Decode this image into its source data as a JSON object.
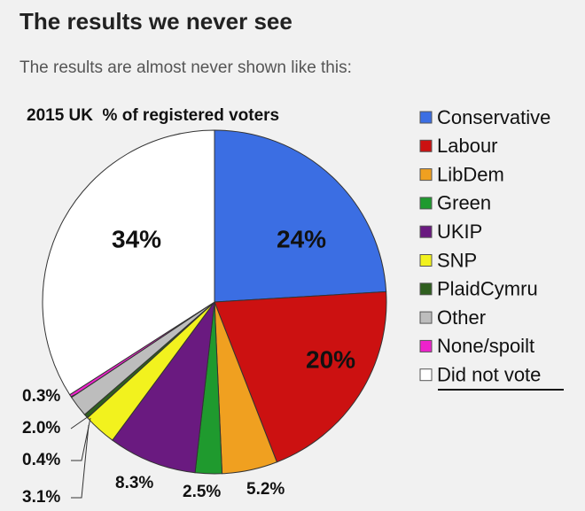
{
  "header": {
    "title": "The results we never see",
    "subtitle": "The results are almost never shown like this:"
  },
  "chart_data": {
    "type": "pie",
    "title": "2015 UK  % of registered voters",
    "categories": [
      "Conservative",
      "Labour",
      "LibDem",
      "Green",
      "UKIP",
      "SNP",
      "PlaidCymru",
      "Other",
      "None/spoilt",
      "Did not vote"
    ],
    "values": [
      24,
      20,
      5.2,
      2.5,
      8.3,
      3.1,
      0.4,
      2,
      0.3,
      34
    ],
    "value_labels": [
      "24%",
      "20%",
      "5.2%",
      "2.5%",
      "8.3%",
      "3.1%",
      "0.4%",
      "2.0%",
      "0.3%",
      "34%"
    ],
    "colors": [
      "#3b6ee3",
      "#cc1111",
      "#f0a020",
      "#1f9a2e",
      "#6a1a80",
      "#f2f21e",
      "#2f5f1f",
      "#bdbdbd",
      "#ee22cc",
      "#ffffff"
    ],
    "legend": "right"
  }
}
